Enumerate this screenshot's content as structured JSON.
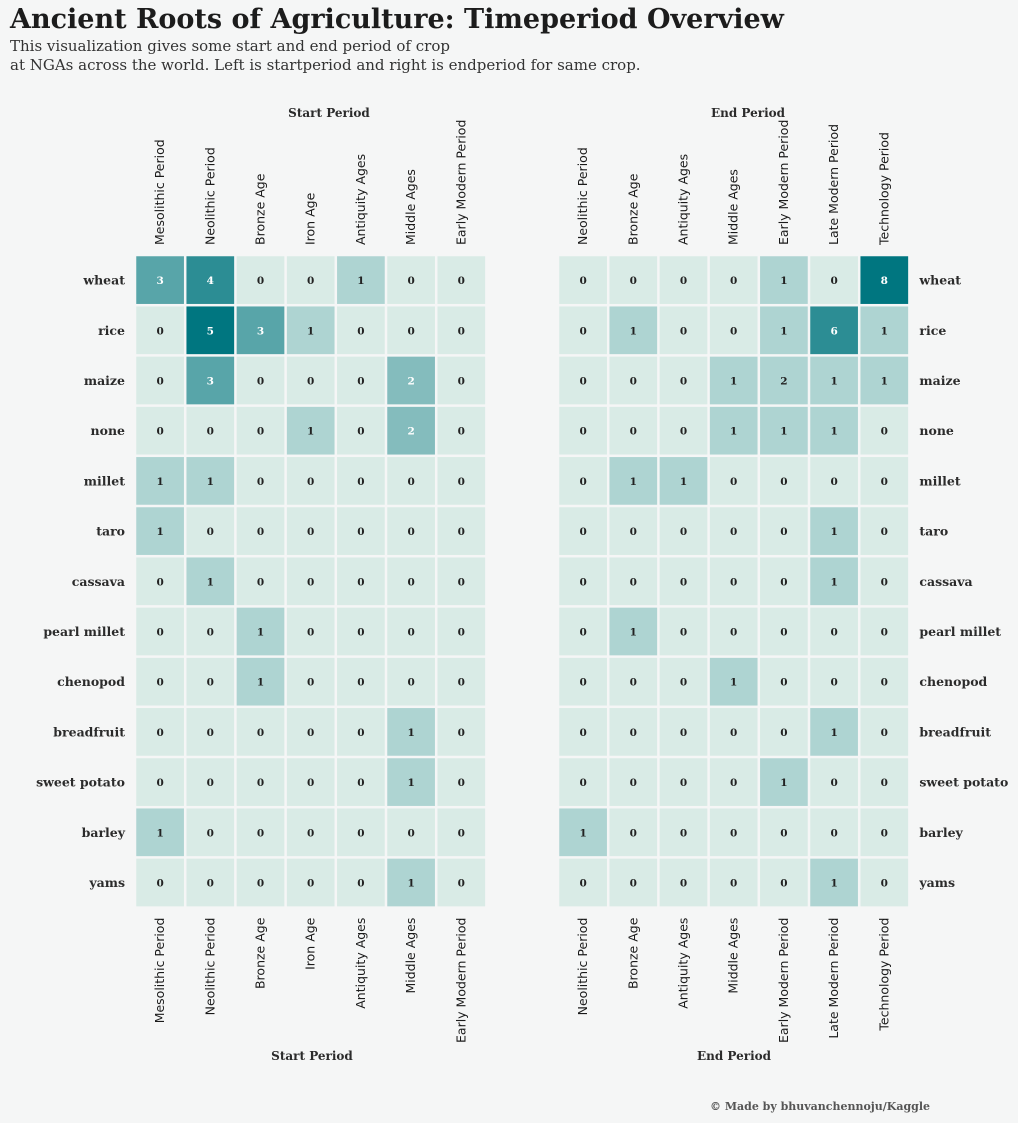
{
  "title": "Ancient Roots of Agriculture: Timeperiod Overview",
  "subtitle_lines": [
    "This visualization gives some start and end period of crop",
    "at NGAs across the world. Left is startperiod and right is endperiod for same crop."
  ],
  "credit": "© Made by bhuvanchennoju/Kaggle",
  "colors": {
    "background": "#f5f6f6",
    "scale": [
      "#d9ebe6",
      "#aed4d2",
      "#84bcbd",
      "#58a5a9",
      "#2c8d94",
      "#007680"
    ],
    "text_dark": "#222222",
    "text_light": "#ffffff"
  },
  "chart_data": [
    {
      "type": "heatmap",
      "title": "Start Period",
      "xlabel": "Start Period",
      "rows": [
        "wheat",
        "rice",
        "maize",
        "none",
        "millet",
        "taro",
        "cassava",
        "pearl millet",
        "chenopod",
        "breadfruit",
        "sweet potato",
        "barley",
        "yams"
      ],
      "columns": [
        "Mesolithic Period",
        "Neolithic Period",
        "Bronze Age",
        "Iron Age",
        "Antiquity Ages",
        "Middle Ages",
        "Early Modern Period"
      ],
      "values": [
        [
          3,
          4,
          0,
          0,
          1,
          0,
          0
        ],
        [
          0,
          5,
          3,
          1,
          0,
          0,
          0
        ],
        [
          0,
          3,
          0,
          0,
          0,
          2,
          0
        ],
        [
          0,
          0,
          0,
          1,
          0,
          2,
          0
        ],
        [
          1,
          1,
          0,
          0,
          0,
          0,
          0
        ],
        [
          1,
          0,
          0,
          0,
          0,
          0,
          0
        ],
        [
          0,
          1,
          0,
          0,
          0,
          0,
          0
        ],
        [
          0,
          0,
          1,
          0,
          0,
          0,
          0
        ],
        [
          0,
          0,
          1,
          0,
          0,
          0,
          0
        ],
        [
          0,
          0,
          0,
          0,
          0,
          1,
          0
        ],
        [
          0,
          0,
          0,
          0,
          0,
          1,
          0
        ],
        [
          1,
          0,
          0,
          0,
          0,
          0,
          0
        ],
        [
          0,
          0,
          0,
          0,
          0,
          1,
          0
        ]
      ],
      "row_labels_side": "left"
    },
    {
      "type": "heatmap",
      "title": "End Period",
      "xlabel": "End Period",
      "rows": [
        "wheat",
        "rice",
        "maize",
        "none",
        "millet",
        "taro",
        "cassava",
        "pearl millet",
        "chenopod",
        "breadfruit",
        "sweet potato",
        "barley",
        "yams"
      ],
      "columns": [
        "Neolithic Period",
        "Bronze Age",
        "Antiquity Ages",
        "Middle Ages",
        "Early Modern Period",
        "Late Modern Period",
        "Technology Period"
      ],
      "values": [
        [
          0,
          0,
          0,
          0,
          1,
          0,
          8
        ],
        [
          0,
          1,
          0,
          0,
          1,
          6,
          1
        ],
        [
          0,
          0,
          0,
          1,
          2,
          1,
          1
        ],
        [
          0,
          0,
          0,
          1,
          1,
          1,
          0
        ],
        [
          0,
          1,
          1,
          0,
          0,
          0,
          0
        ],
        [
          0,
          0,
          0,
          0,
          0,
          1,
          0
        ],
        [
          0,
          0,
          0,
          0,
          0,
          1,
          0
        ],
        [
          0,
          1,
          0,
          0,
          0,
          0,
          0
        ],
        [
          0,
          0,
          0,
          1,
          0,
          0,
          0
        ],
        [
          0,
          0,
          0,
          0,
          0,
          1,
          0
        ],
        [
          0,
          0,
          0,
          0,
          1,
          0,
          0
        ],
        [
          1,
          0,
          0,
          0,
          0,
          0,
          0
        ],
        [
          0,
          0,
          0,
          0,
          0,
          1,
          0
        ]
      ],
      "row_labels_side": "right"
    }
  ]
}
